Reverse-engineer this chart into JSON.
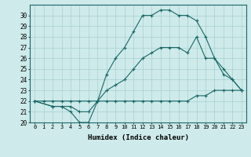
{
  "xlabel": "Humidex (Indice chaleur)",
  "bg_color": "#ceeaea",
  "grid_color": "#aad0d0",
  "line_color": "#1a6868",
  "xlim": [
    -0.5,
    23.5
  ],
  "ylim": [
    20,
    31
  ],
  "xticks": [
    0,
    1,
    2,
    3,
    4,
    5,
    6,
    7,
    8,
    9,
    10,
    11,
    12,
    13,
    14,
    15,
    16,
    17,
    18,
    19,
    20,
    21,
    22,
    23
  ],
  "yticks": [
    20,
    21,
    22,
    23,
    24,
    25,
    26,
    27,
    28,
    29,
    30
  ],
  "line1_x": [
    0,
    1,
    2,
    3,
    4,
    5,
    6,
    7,
    8,
    9,
    10,
    11,
    12,
    13,
    14,
    15,
    16,
    17,
    18,
    19,
    20,
    21,
    22,
    23
  ],
  "line1_y": [
    22,
    22,
    22,
    22,
    22,
    22,
    22,
    22,
    22,
    22,
    22,
    22,
    22,
    22,
    22,
    22,
    22,
    22,
    22.5,
    22.5,
    23,
    23,
    23,
    23
  ],
  "line2_x": [
    0,
    2,
    3,
    4,
    5,
    6,
    7,
    8,
    9,
    10,
    11,
    12,
    13,
    14,
    15,
    16,
    17,
    18,
    19,
    20,
    21,
    22,
    23
  ],
  "line2_y": [
    22,
    21.5,
    21.5,
    21.5,
    21,
    21,
    22,
    23,
    23.5,
    24,
    25,
    26,
    26.5,
    27,
    27,
    27,
    26.5,
    28,
    26,
    26,
    24.5,
    24,
    23
  ],
  "line3_x": [
    0,
    2,
    3,
    4,
    5,
    6,
    7,
    8,
    9,
    10,
    11,
    12,
    13,
    14,
    15,
    16,
    17,
    18,
    19,
    20,
    21,
    22,
    23
  ],
  "line3_y": [
    22,
    21.5,
    21.5,
    21,
    20,
    20,
    22,
    24.5,
    26,
    27,
    28.5,
    30,
    30,
    30.5,
    30.5,
    30,
    30,
    29.5,
    28,
    26,
    25,
    24,
    23
  ]
}
